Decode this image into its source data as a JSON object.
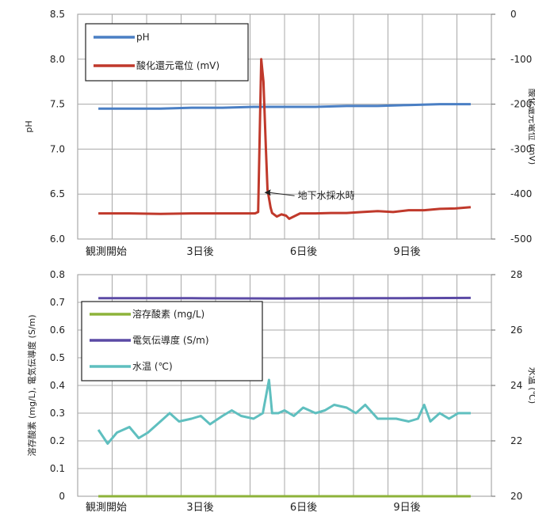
{
  "chart_data": [
    {
      "type": "line",
      "x_categories": [
        "観測開始",
        "3日後",
        "6日後",
        "9日後"
      ],
      "x_range_days": [
        0,
        12
      ],
      "y_left": {
        "label": "pH",
        "lim": [
          6.0,
          8.5
        ],
        "ticks": [
          "6.0",
          "6.5",
          "7.0",
          "7.5",
          "8.0",
          "8.5"
        ]
      },
      "y_right": {
        "label": "酸化還元電位 (mV)",
        "lim": [
          -500,
          0
        ],
        "ticks": [
          "-500",
          "-400",
          "-300",
          "-200",
          "-100",
          "0"
        ]
      },
      "grid": true,
      "legend_position": "top-left",
      "annotation": {
        "text": "地下水採水時",
        "x": 5.3,
        "y_right": -400
      },
      "series": [
        {
          "name": "pH",
          "axis": "left",
          "color": "#4a7fc4",
          "x": [
            0,
            1,
            2,
            3,
            4,
            5,
            6,
            7,
            8,
            9,
            10,
            11,
            12
          ],
          "y": [
            7.45,
            7.45,
            7.45,
            7.46,
            7.46,
            7.47,
            7.47,
            7.47,
            7.48,
            7.48,
            7.49,
            7.5,
            7.5
          ]
        },
        {
          "name": "酸化還元電位 (mV)",
          "axis": "right",
          "color": "#c0392b",
          "x": [
            0,
            1,
            2,
            3,
            4,
            5.05,
            5.15,
            5.25,
            5.32,
            5.4,
            5.45,
            5.55,
            5.6,
            5.75,
            5.9,
            6.05,
            6.15,
            6.5,
            7,
            7.5,
            8,
            8.5,
            9,
            9.5,
            10,
            10.5,
            11,
            11.5,
            12
          ],
          "y": [
            -443,
            -443,
            -444,
            -443,
            -443,
            -443,
            -440,
            -100,
            -150,
            -300,
            -390,
            -430,
            -442,
            -450,
            -445,
            -448,
            -455,
            -443,
            -443,
            -442,
            -442,
            -440,
            -438,
            -440,
            -436,
            -436,
            -433,
            -432,
            -429
          ]
        }
      ]
    },
    {
      "type": "line",
      "x_categories": [
        "観測開始",
        "3日後",
        "6日後",
        "9日後"
      ],
      "x_range_days": [
        0,
        12
      ],
      "y_left": {
        "label": "溶存酸素 (mg/L), 電気伝導度 (S/m)",
        "lim": [
          0,
          0.8
        ],
        "ticks": [
          "0",
          "0.1",
          "0.2",
          "0.3",
          "0.4",
          "0.5",
          "0.6",
          "0.7",
          "0.8"
        ]
      },
      "y_right": {
        "label": "水温 (℃)",
        "lim": [
          20,
          28
        ],
        "ticks": [
          "20",
          "22",
          "24",
          "26",
          "28"
        ]
      },
      "grid": true,
      "legend_position": "top-left",
      "series": [
        {
          "name": "溶存酸素 (mg/L)",
          "axis": "left",
          "color": "#8db33a",
          "x": [
            0,
            12
          ],
          "y": [
            0.0,
            0.0
          ]
        },
        {
          "name": "電気伝導度 (S/m)",
          "axis": "left",
          "color": "#5b4aa5",
          "x": [
            0,
            3,
            6,
            9,
            12
          ],
          "y": [
            0.715,
            0.715,
            0.714,
            0.715,
            0.716
          ]
        },
        {
          "name": "水温 (℃)",
          "axis": "right",
          "color": "#5fbfbf",
          "x": [
            0,
            0.3,
            0.6,
            1.0,
            1.3,
            1.6,
            2.0,
            2.3,
            2.6,
            3.0,
            3.3,
            3.6,
            4.0,
            4.3,
            4.6,
            5.0,
            5.3,
            5.5,
            5.6,
            5.8,
            6.0,
            6.3,
            6.6,
            7.0,
            7.3,
            7.6,
            8.0,
            8.3,
            8.6,
            9.0,
            9.3,
            9.6,
            10.0,
            10.3,
            10.5,
            10.7,
            11.0,
            11.3,
            11.6,
            12.0
          ],
          "y": [
            22.4,
            21.9,
            22.3,
            22.5,
            22.1,
            22.3,
            22.7,
            23.0,
            22.7,
            22.8,
            22.9,
            22.6,
            22.9,
            23.1,
            22.9,
            22.8,
            23.0,
            24.2,
            23.0,
            23.0,
            23.1,
            22.9,
            23.2,
            23.0,
            23.1,
            23.3,
            23.2,
            23.0,
            23.3,
            22.8,
            22.8,
            22.8,
            22.7,
            22.8,
            23.3,
            22.7,
            23.0,
            22.8,
            23.0,
            23.0
          ]
        }
      ]
    }
  ]
}
